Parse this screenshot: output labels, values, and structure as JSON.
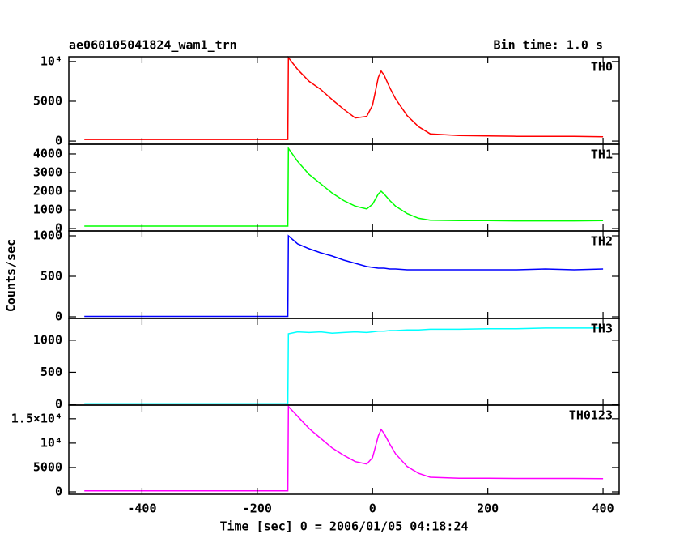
{
  "chart_data": {
    "type": "line",
    "title": "ae060105041824_wam1_trn",
    "subtitle": "Bin time: 1.0 s",
    "xlabel": "Time [sec] 0 = 2006/01/05 04:18:24",
    "ylabel": "Counts/sec",
    "xlim": [
      -527,
      428
    ],
    "xticks": [
      -400,
      -200,
      0,
      200,
      400
    ],
    "x": [
      -500,
      -147,
      -146,
      -130,
      -110,
      -90,
      -70,
      -50,
      -30,
      -10,
      0,
      10,
      15,
      20,
      30,
      40,
      60,
      80,
      100,
      150,
      200,
      250,
      300,
      350,
      400
    ],
    "panels": [
      {
        "name": "TH0",
        "color": "#ff0000",
        "ylim": [
          -400,
          10600
        ],
        "yticks": [
          0,
          5000,
          {
            "value": 10000,
            "label": "10⁴"
          }
        ],
        "values": [
          200,
          200,
          10500,
          9000,
          7500,
          6500,
          5200,
          4000,
          2900,
          3100,
          4500,
          8000,
          8800,
          8300,
          6700,
          5300,
          3200,
          1800,
          900,
          700,
          650,
          600,
          600,
          600,
          550
        ]
      },
      {
        "name": "TH1",
        "color": "#00ff00",
        "ylim": [
          -130,
          4520
        ],
        "yticks": [
          0,
          1000,
          2000,
          3000,
          4000
        ],
        "values": [
          130,
          130,
          4300,
          3600,
          2900,
          2400,
          1900,
          1500,
          1200,
          1050,
          1300,
          1850,
          2000,
          1850,
          1500,
          1200,
          800,
          550,
          450,
          420,
          420,
          410,
          410,
          410,
          420
        ]
      },
      {
        "name": "TH2",
        "color": "#0000ff",
        "ylim": [
          -20,
          1060
        ],
        "yticks": [
          0,
          500,
          1000
        ],
        "values": [
          5,
          5,
          1000,
          900,
          840,
          790,
          750,
          700,
          660,
          620,
          610,
          600,
          600,
          600,
          590,
          590,
          580,
          580,
          580,
          580,
          580,
          580,
          590,
          580,
          590
        ]
      },
      {
        "name": "TH3",
        "color": "#00ffff",
        "ylim": [
          -13,
          1340
        ],
        "yticks": [
          0,
          500,
          1000
        ],
        "values": [
          10,
          10,
          1100,
          1130,
          1120,
          1130,
          1110,
          1120,
          1130,
          1120,
          1130,
          1140,
          1140,
          1140,
          1150,
          1150,
          1160,
          1160,
          1170,
          1170,
          1180,
          1180,
          1190,
          1190,
          1190
        ]
      },
      {
        "name": "TH0123",
        "color": "#ff00ff",
        "ylim": [
          -500,
          17800
        ],
        "yticks": [
          0,
          5000,
          {
            "value": 10000,
            "label": "10⁴"
          },
          {
            "value": 15000,
            "label": "1.5×10⁴"
          }
        ],
        "values": [
          200,
          200,
          17500,
          15500,
          13000,
          11000,
          9000,
          7500,
          6200,
          5700,
          7000,
          11500,
          12800,
          12000,
          9800,
          7800,
          5200,
          3800,
          3000,
          2800,
          2800,
          2750,
          2750,
          2750,
          2700
        ]
      }
    ]
  }
}
